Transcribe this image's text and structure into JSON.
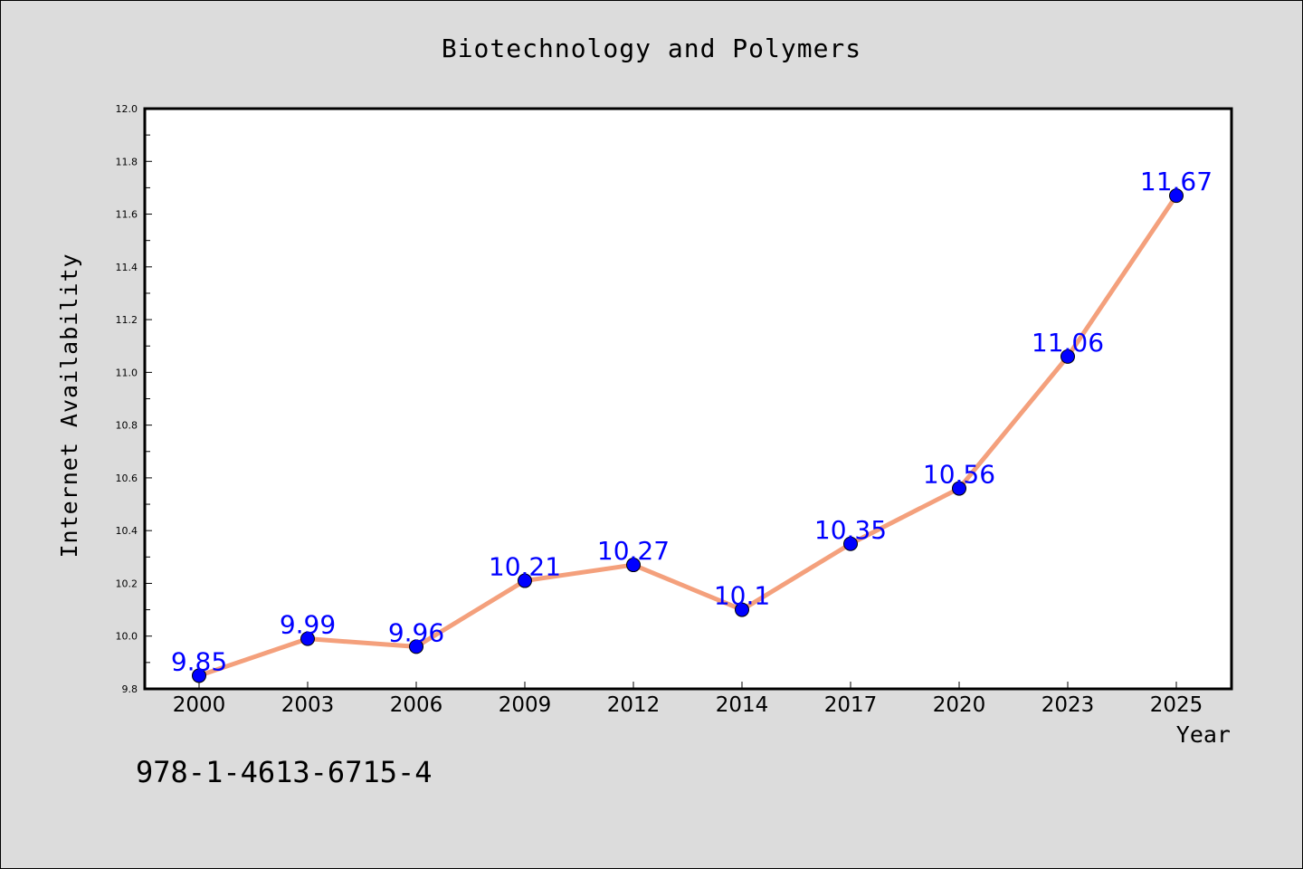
{
  "page": {
    "background": "#dcdcdc",
    "isbn_text": "978-1-4613-6715-4"
  },
  "chart_data": {
    "type": "line",
    "title": "Biotechnology and Polymers",
    "xlabel": "Year",
    "ylabel": "Internet Availability",
    "categories": [
      "2000",
      "2003",
      "2006",
      "2009",
      "2012",
      "2014",
      "2017",
      "2020",
      "2023",
      "2025"
    ],
    "series": [
      {
        "values": [
          9.85,
          9.99,
          9.96,
          10.21,
          10.27,
          10.1,
          10.35,
          10.56,
          11.06,
          11.67
        ],
        "data_labels": [
          "9.85",
          "9.99",
          "9.96",
          "10.21",
          "10.27",
          "10.1",
          "10.35",
          "10.56",
          "11.06",
          "11.67"
        ],
        "line_color": "#f4a07c",
        "marker_color": "#0000ff"
      }
    ],
    "ylim": [
      9.8,
      12.0
    ],
    "yticks": [
      "9.8",
      "10.0",
      "10.2",
      "10.4",
      "10.6",
      "10.8",
      "11.0",
      "11.2",
      "11.4",
      "11.6",
      "11.8",
      "12.0"
    ],
    "y_minor_step": 0.1,
    "grid": false,
    "legend": false,
    "label_color": "#0000ff"
  }
}
